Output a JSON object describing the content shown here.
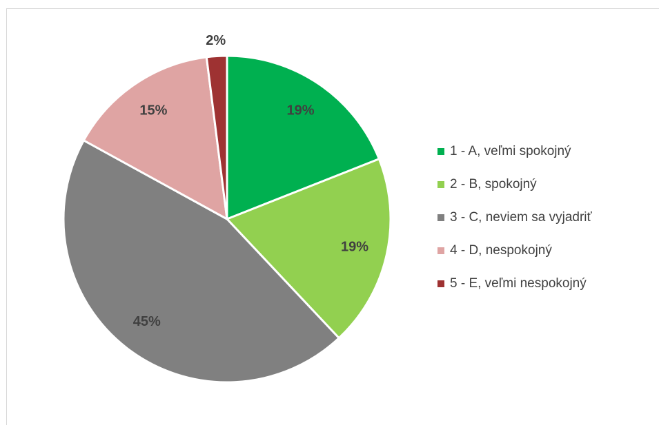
{
  "chart_data": {
    "type": "pie",
    "categories": [
      "1 - A, veľmi spokojný",
      "2 - B, spokojný",
      "3 - C, neviem sa vyjadriť",
      "4 - D, nespokojný",
      "5 - E, veľmi nespokojný"
    ],
    "values": [
      19,
      19,
      45,
      15,
      2
    ],
    "value_labels": [
      "19%",
      "19%",
      "45%",
      "15%",
      "2%"
    ],
    "colors": [
      "#00b050",
      "#92d050",
      "#808080",
      "#dfa4a3",
      "#9e3232"
    ],
    "legend": "right"
  }
}
